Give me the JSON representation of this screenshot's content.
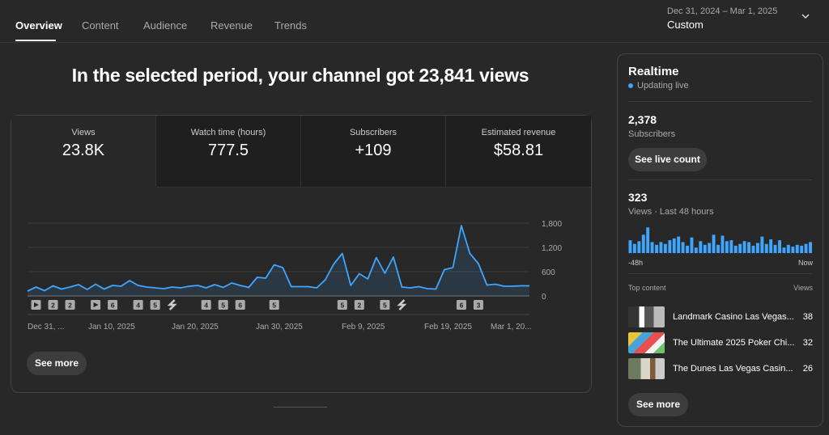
{
  "tabs": [
    {
      "label": "Overview",
      "active": true
    },
    {
      "label": "Content",
      "active": false
    },
    {
      "label": "Audience",
      "active": false
    },
    {
      "label": "Revenue",
      "active": false
    },
    {
      "label": "Trends",
      "active": false
    }
  ],
  "date_picker": {
    "range": "Dec 31, 2024 – Mar 1, 2025",
    "mode": "Custom"
  },
  "headline": "In the selected period, your channel got 23,841 views",
  "metrics": [
    {
      "label": "Views",
      "value": "23.8K"
    },
    {
      "label": "Watch time (hours)",
      "value": "777.5"
    },
    {
      "label": "Subscribers",
      "value": "+109"
    },
    {
      "label": "Estimated revenue",
      "value": "$58.81"
    }
  ],
  "chart_data": {
    "type": "area",
    "series_color": "#3ea6ff",
    "y_ticks": [
      "1,800",
      "1,200",
      "600",
      "0"
    ],
    "ylim": [
      0,
      1800
    ],
    "x_labels": [
      "Dec 31, ...",
      "Jan 10, 2025",
      "Jan 20, 2025",
      "Jan 30, 2025",
      "Feb 9, 2025",
      "Feb 19, 2025",
      "Mar 1, 20..."
    ],
    "values": [
      120,
      220,
      130,
      250,
      170,
      220,
      280,
      160,
      290,
      170,
      260,
      240,
      380,
      260,
      220,
      200,
      180,
      220,
      200,
      240,
      260,
      200,
      280,
      210,
      320,
      260,
      210,
      460,
      440,
      770,
      700,
      230,
      230,
      230,
      200,
      400,
      790,
      1050,
      260,
      550,
      420,
      950,
      560,
      960,
      220,
      200,
      230,
      180,
      170,
      650,
      700,
      1740,
      1050,
      800,
      270,
      290,
      240,
      240,
      250,
      250
    ],
    "markers": [
      {
        "day": 1,
        "kind": "video"
      },
      {
        "day": 3,
        "kind": "count",
        "label": "2"
      },
      {
        "day": 5,
        "kind": "count",
        "label": "2"
      },
      {
        "day": 8,
        "kind": "video"
      },
      {
        "day": 10,
        "kind": "count",
        "label": "6"
      },
      {
        "day": 13,
        "kind": "count",
        "label": "4"
      },
      {
        "day": 15,
        "kind": "count",
        "label": "5"
      },
      {
        "day": 17,
        "kind": "short"
      },
      {
        "day": 21,
        "kind": "count",
        "label": "4"
      },
      {
        "day": 23,
        "kind": "count",
        "label": "5"
      },
      {
        "day": 25,
        "kind": "count",
        "label": "6"
      },
      {
        "day": 29,
        "kind": "count",
        "label": "5"
      },
      {
        "day": 37,
        "kind": "count",
        "label": "5"
      },
      {
        "day": 39,
        "kind": "count",
        "label": "2"
      },
      {
        "day": 42,
        "kind": "count",
        "label": "5"
      },
      {
        "day": 44,
        "kind": "short"
      },
      {
        "day": 51,
        "kind": "count",
        "label": "6"
      },
      {
        "day": 53,
        "kind": "count",
        "label": "3"
      }
    ]
  },
  "see_more_label": "See more",
  "realtime": {
    "title": "Realtime",
    "status": "Updating live",
    "subscribers": {
      "value": "2,378",
      "label": "Subscribers",
      "button": "See live count"
    },
    "views": {
      "value": "323",
      "label": "Views · Last 48 hours"
    },
    "bars": [
      14,
      10,
      13,
      20,
      28,
      12,
      9,
      12,
      10,
      14,
      16,
      18,
      12,
      8,
      17,
      6,
      13,
      9,
      11,
      20,
      9,
      19,
      13,
      14,
      8,
      10,
      13,
      12,
      8,
      11,
      18,
      10,
      15,
      9,
      14,
      6,
      9,
      7,
      9,
      8,
      10,
      12
    ],
    "bar_start_label": "-48h",
    "bar_end_label": "Now",
    "top_content_label": "Top content",
    "top_content_views_label": "Views",
    "top_content": [
      {
        "title": "Landmark Casino Las Vegas...",
        "views": "38"
      },
      {
        "title": "The Ultimate 2025 Poker Chi...",
        "views": "32"
      },
      {
        "title": "The Dunes Las Vegas Casin...",
        "views": "26"
      }
    ],
    "see_more": "See more"
  }
}
